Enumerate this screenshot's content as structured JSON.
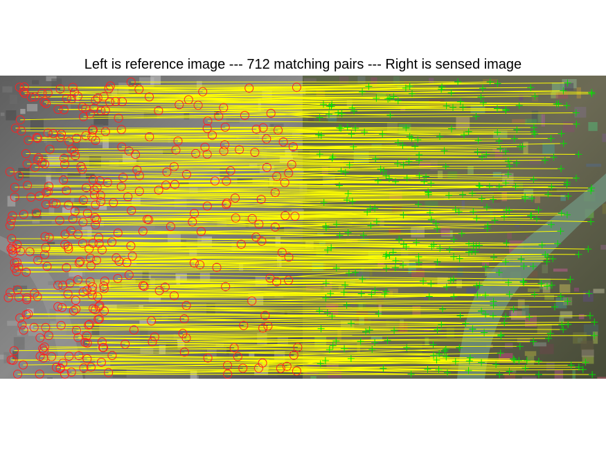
{
  "figure": {
    "title": "Left is reference image --- 712 matching pairs --- Right is sensed image"
  },
  "colors": {
    "match_line": "#ffff00",
    "reference_marker": "#ff2020",
    "sensed_marker": "#00e000",
    "reference_image_tone": "#7a7a7a",
    "sensed_image_tone": "#4f5d3c",
    "river": "#6f8f7a"
  },
  "markers": {
    "reference": "red-circle",
    "sensed": "green-plus"
  }
}
